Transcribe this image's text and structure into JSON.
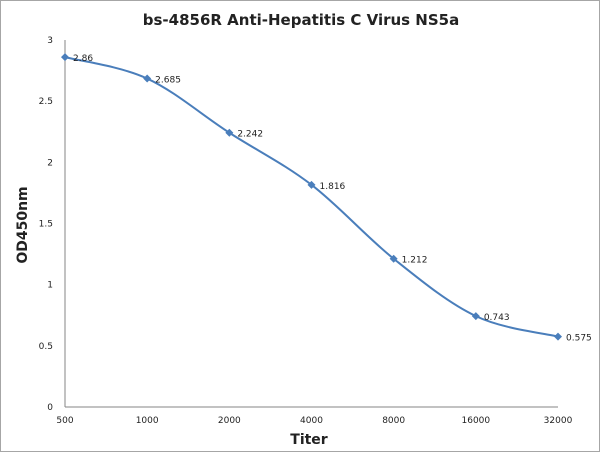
{
  "chart_data": {
    "type": "line",
    "title": "bs-4856R Anti-Hepatitis C Virus NS5a",
    "xlabel": "Titer",
    "ylabel": "OD450nm",
    "categories": [
      "500",
      "1000",
      "2000",
      "4000",
      "8000",
      "16000",
      "32000"
    ],
    "values": [
      2.86,
      2.685,
      2.242,
      1.816,
      1.212,
      0.743,
      0.575
    ],
    "data_labels": [
      "2.86",
      "2.685",
      "2.242",
      "1.816",
      "1.212",
      "0.743",
      "0.575"
    ],
    "ylim": [
      0,
      3
    ],
    "yticks": [
      "0",
      "0.5",
      "1",
      "1.5",
      "2",
      "2.5",
      "3"
    ],
    "grid": false,
    "legend": "none",
    "line_color": "#4a7ebb",
    "smooth": true
  }
}
